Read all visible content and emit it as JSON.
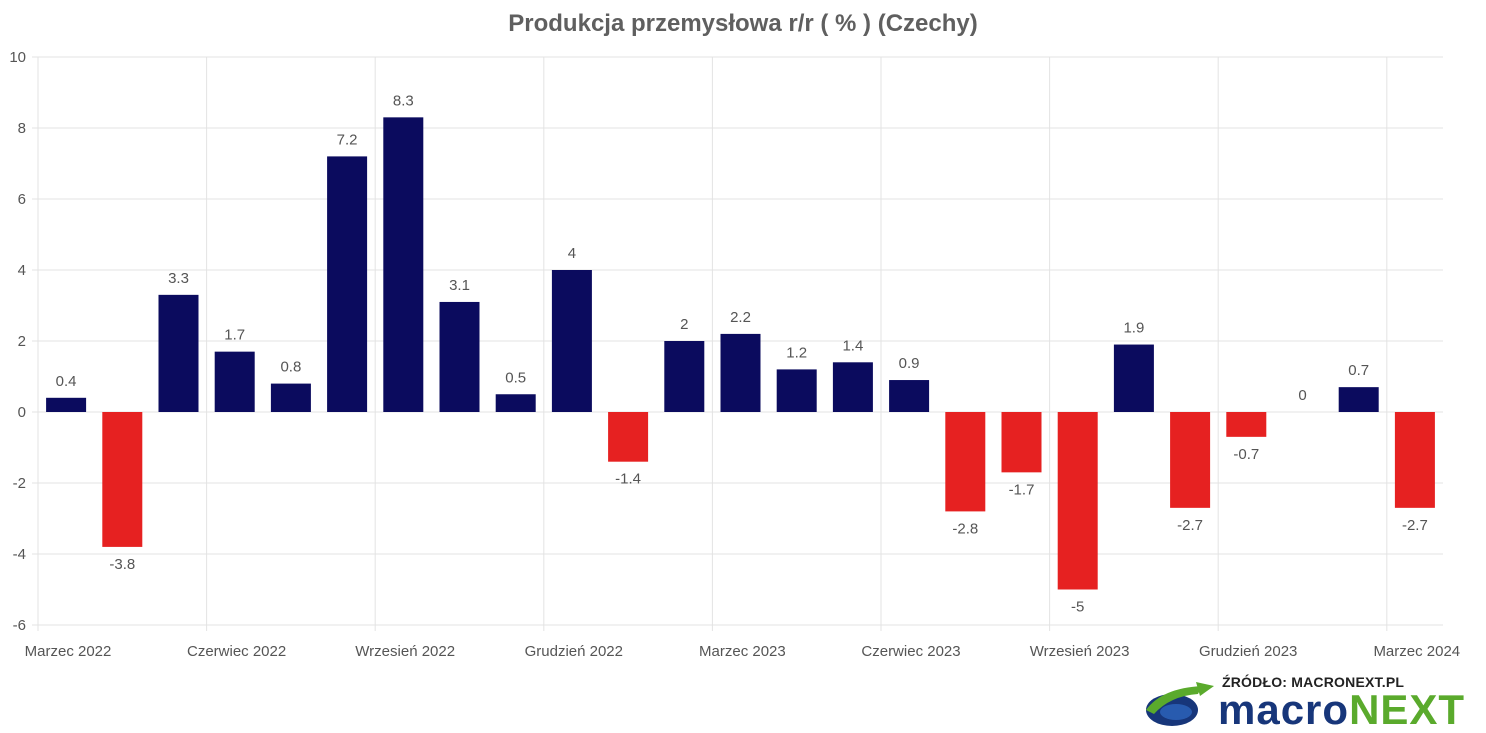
{
  "chart_data": {
    "type": "bar",
    "title": "Produkcja przemysłowa r/r ( % ) (Czechy)",
    "xlabel": "",
    "ylabel": "",
    "ylim": [
      -6,
      10
    ],
    "yticks": [
      10,
      8,
      6,
      4,
      2,
      0,
      -2,
      -4,
      -6
    ],
    "grid": true,
    "legend": "none",
    "x_tick_labels": [
      "Marzec 2022",
      "Czerwiec 2022",
      "Wrzesień 2022",
      "Grudzień 2022",
      "Marzec 2023",
      "Czerwiec 2023",
      "Wrzesień 2023",
      "Grudzień 2023",
      "Marzec 2024"
    ],
    "values": [
      0.4,
      -3.8,
      3.3,
      1.7,
      0.8,
      7.2,
      8.3,
      3.1,
      0.5,
      4,
      -1.4,
      2,
      2.2,
      1.2,
      1.4,
      0.9,
      -2.8,
      -1.7,
      -5,
      1.9,
      -2.7,
      -0.7,
      0,
      0.7,
      -2.7
    ],
    "positive_color": "#0b0b5e",
    "negative_color": "#e62121"
  },
  "source": {
    "label": "ŹRÓDŁO: MACRONEXT.PL",
    "logo_part1": "macro",
    "logo_part2": "NEXT"
  }
}
